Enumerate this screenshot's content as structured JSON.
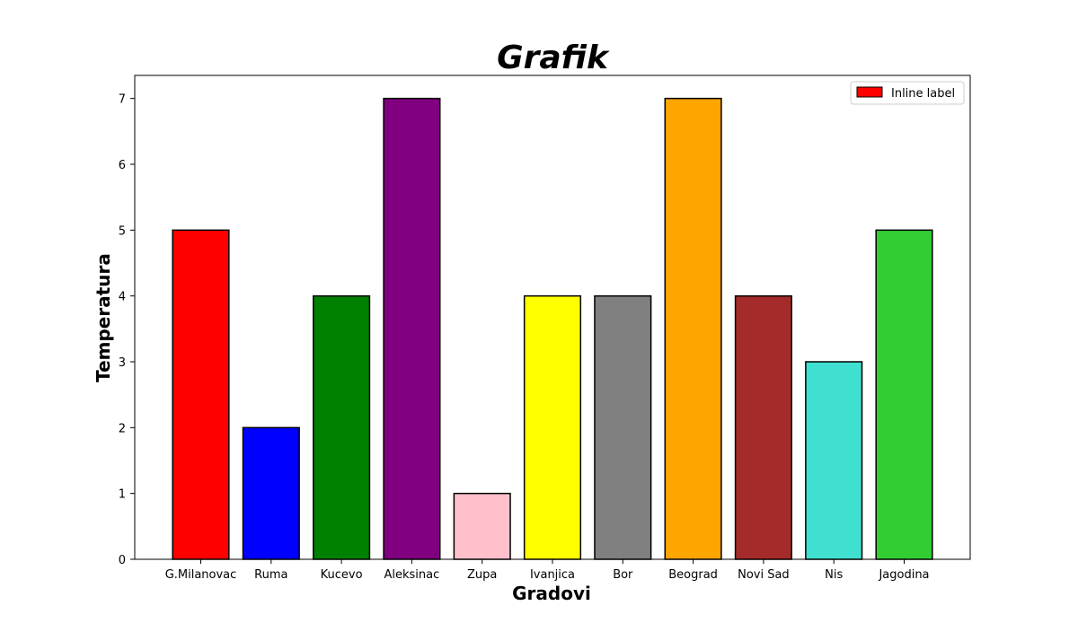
{
  "chart_data": {
    "type": "bar",
    "title": "Grafik",
    "xlabel": "Gradovi",
    "ylabel": "Temperatura",
    "categories": [
      "G.Milanovac",
      "Ruma",
      "Kucevo",
      "Aleksinac",
      "Zupa",
      "Ivanjica",
      "Bor",
      "Beograd",
      "Novi Sad",
      "Nis",
      "Jagodina"
    ],
    "values": [
      5,
      2,
      4,
      7,
      1,
      4,
      4,
      7,
      4,
      3,
      5
    ],
    "colors": [
      "#ff0000",
      "#0000ff",
      "#008000",
      "#800080",
      "#ffc0cb",
      "#ffff00",
      "#808080",
      "#ffa500",
      "#a52a2a",
      "#40e0d0",
      "#32cd32"
    ],
    "ylim": [
      0,
      7.35
    ],
    "yticks": [
      0,
      1,
      2,
      3,
      4,
      5,
      6,
      7
    ],
    "grid": false,
    "legend": {
      "placement": "top-right",
      "entries": [
        {
          "label": "Inline label",
          "color": "#ff0000"
        }
      ]
    }
  }
}
